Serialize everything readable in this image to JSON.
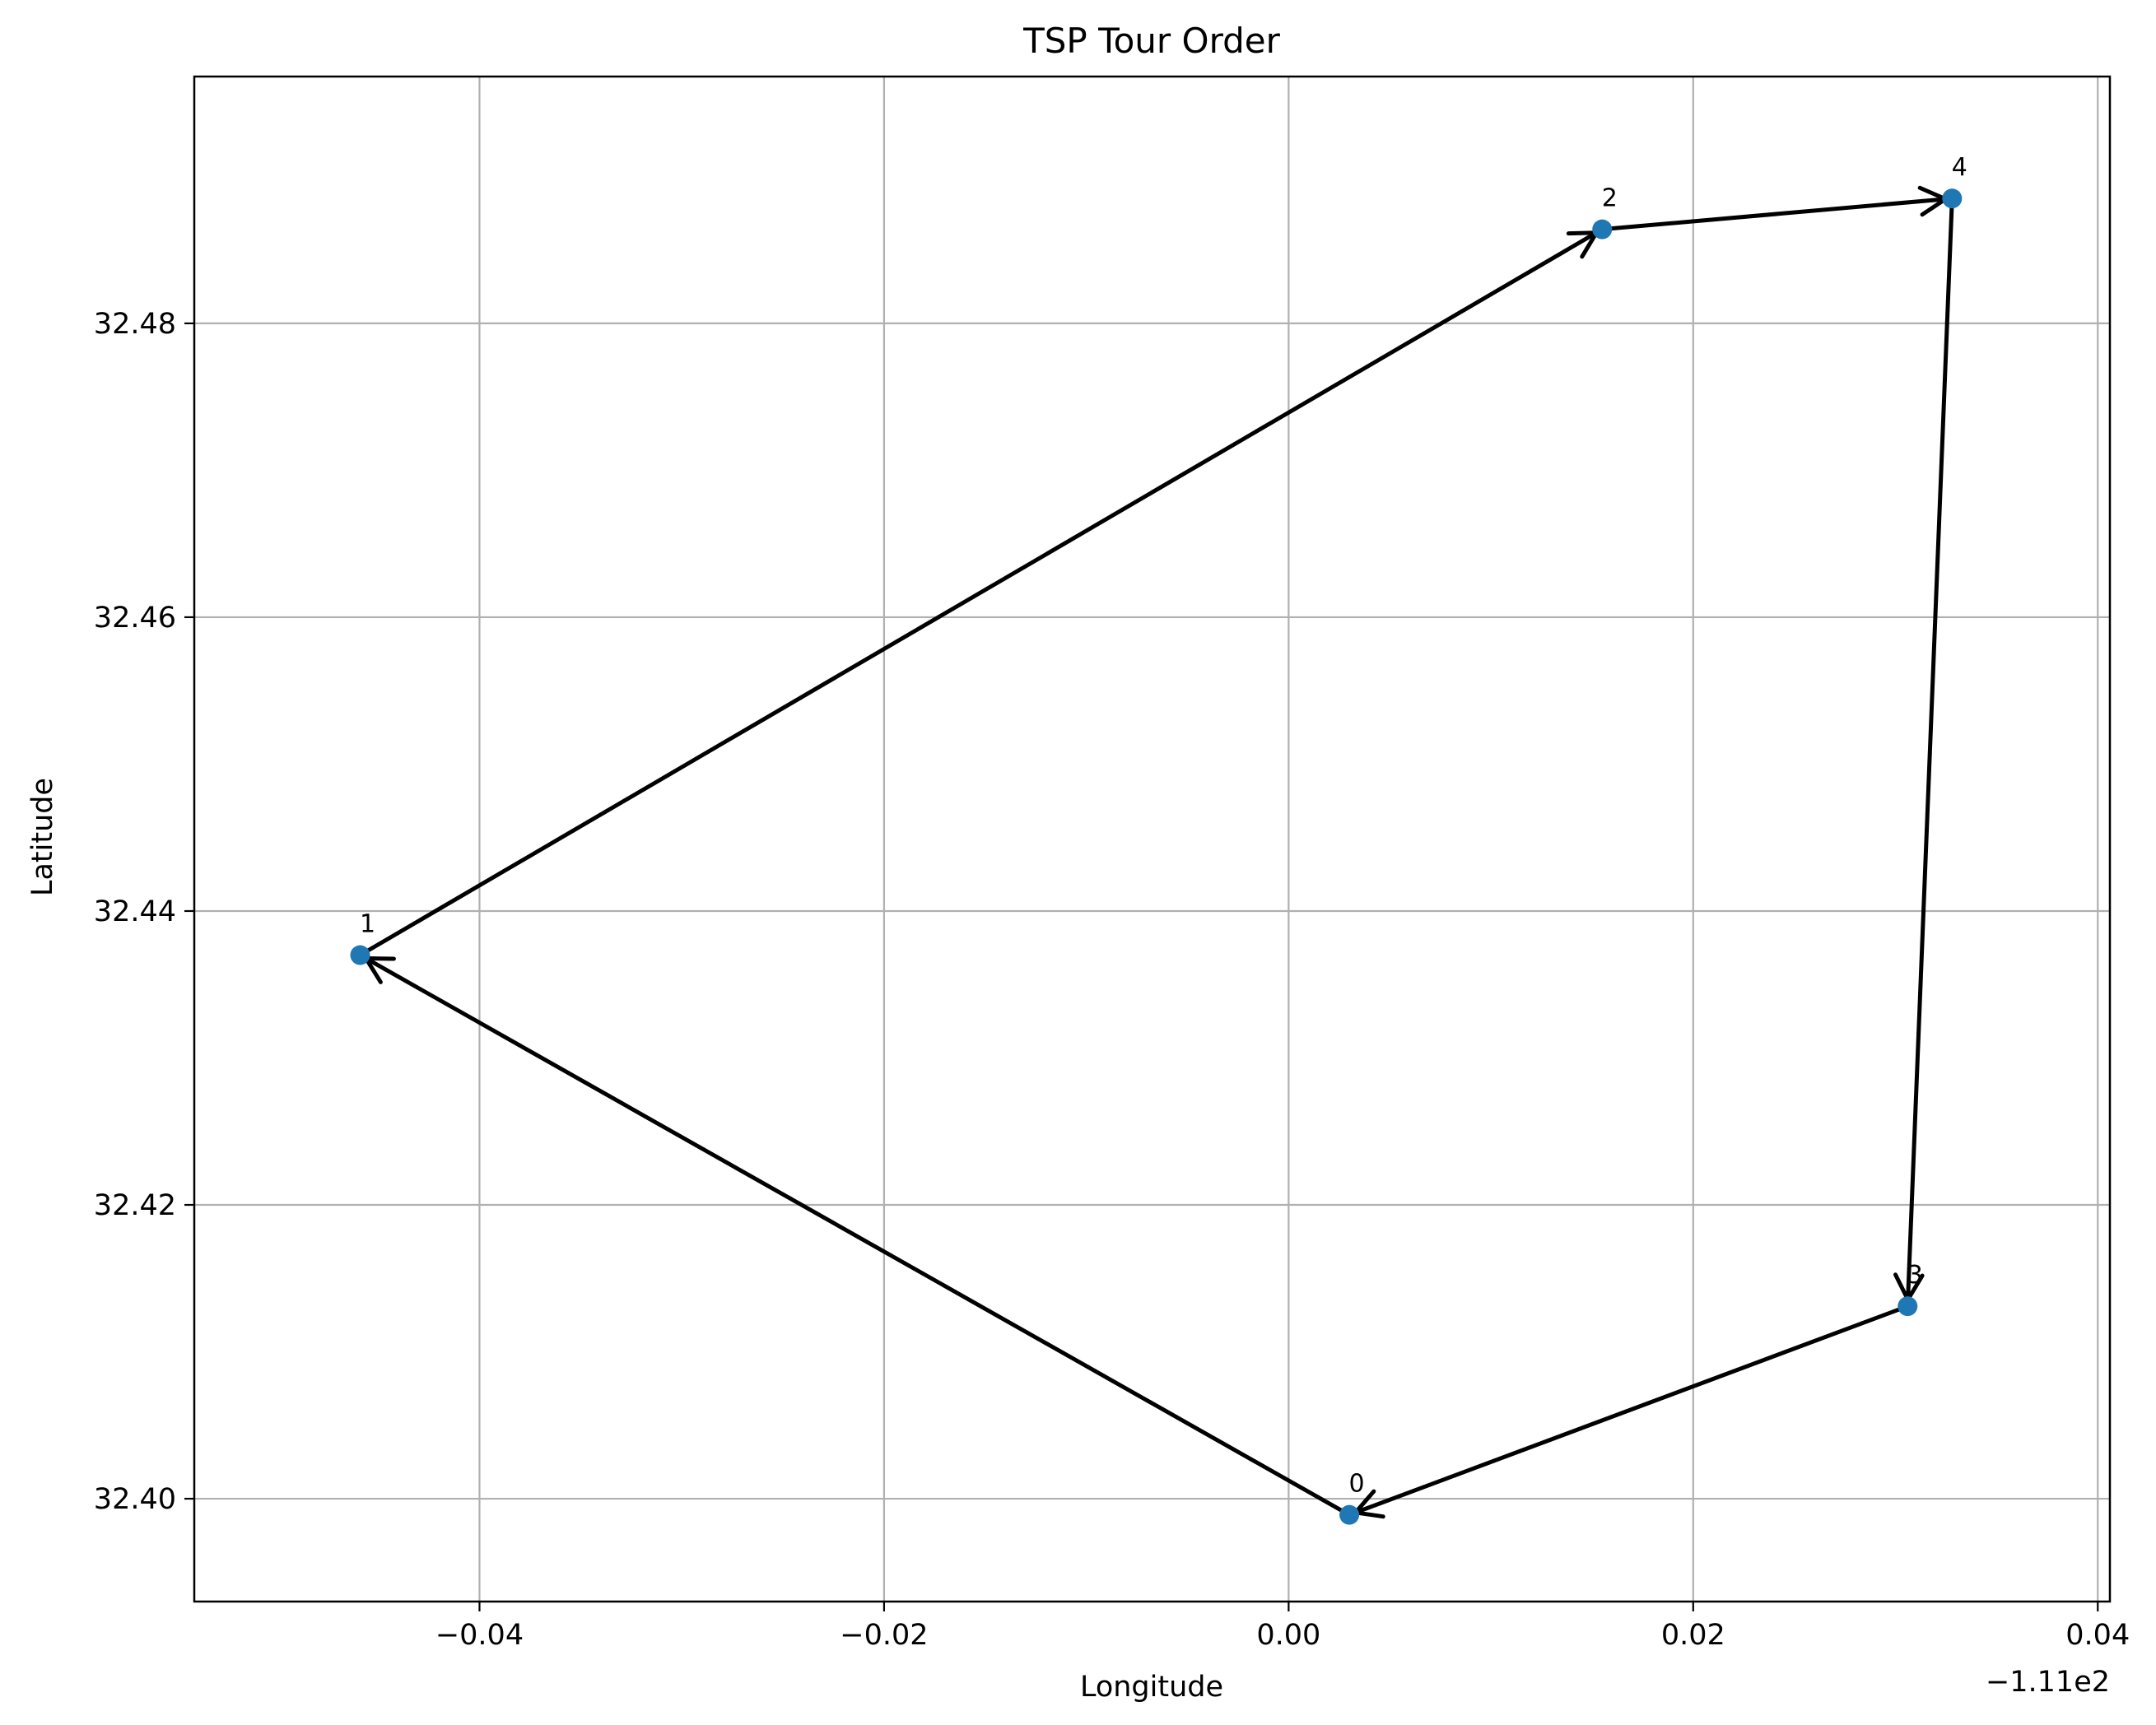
{
  "chart_data": {
    "type": "scatter",
    "title": "TSP Tour Order",
    "xlabel": "Longitude",
    "ylabel": "Latitude",
    "x_offset_label": "−1.11e2",
    "xlim": [
      -0.0541,
      0.0406
    ],
    "ylim": [
      32.393,
      32.4968
    ],
    "xticks": [
      {
        "value": -0.04,
        "label": "−0.04"
      },
      {
        "value": -0.02,
        "label": "−0.02"
      },
      {
        "value": 0.0,
        "label": "0.00"
      },
      {
        "value": 0.02,
        "label": "0.02"
      },
      {
        "value": 0.04,
        "label": "0.04"
      }
    ],
    "yticks": [
      {
        "value": 32.4,
        "label": "32.40"
      },
      {
        "value": 32.42,
        "label": "32.42"
      },
      {
        "value": 32.44,
        "label": "32.44"
      },
      {
        "value": 32.46,
        "label": "32.46"
      },
      {
        "value": 32.48,
        "label": "32.48"
      }
    ],
    "grid": true,
    "point_color": "#1f77b4",
    "arrow_color": "#000000",
    "points": [
      {
        "label": "0",
        "x": 0.003,
        "y": 32.3989
      },
      {
        "label": "1",
        "x": -0.0459,
        "y": 32.437
      },
      {
        "label": "2",
        "x": 0.0155,
        "y": 32.4864
      },
      {
        "label": "3",
        "x": 0.0306,
        "y": 32.4131
      },
      {
        "label": "4",
        "x": 0.0328,
        "y": 32.4885
      }
    ],
    "tour_order": [
      0,
      1,
      2,
      4,
      3,
      0
    ]
  }
}
